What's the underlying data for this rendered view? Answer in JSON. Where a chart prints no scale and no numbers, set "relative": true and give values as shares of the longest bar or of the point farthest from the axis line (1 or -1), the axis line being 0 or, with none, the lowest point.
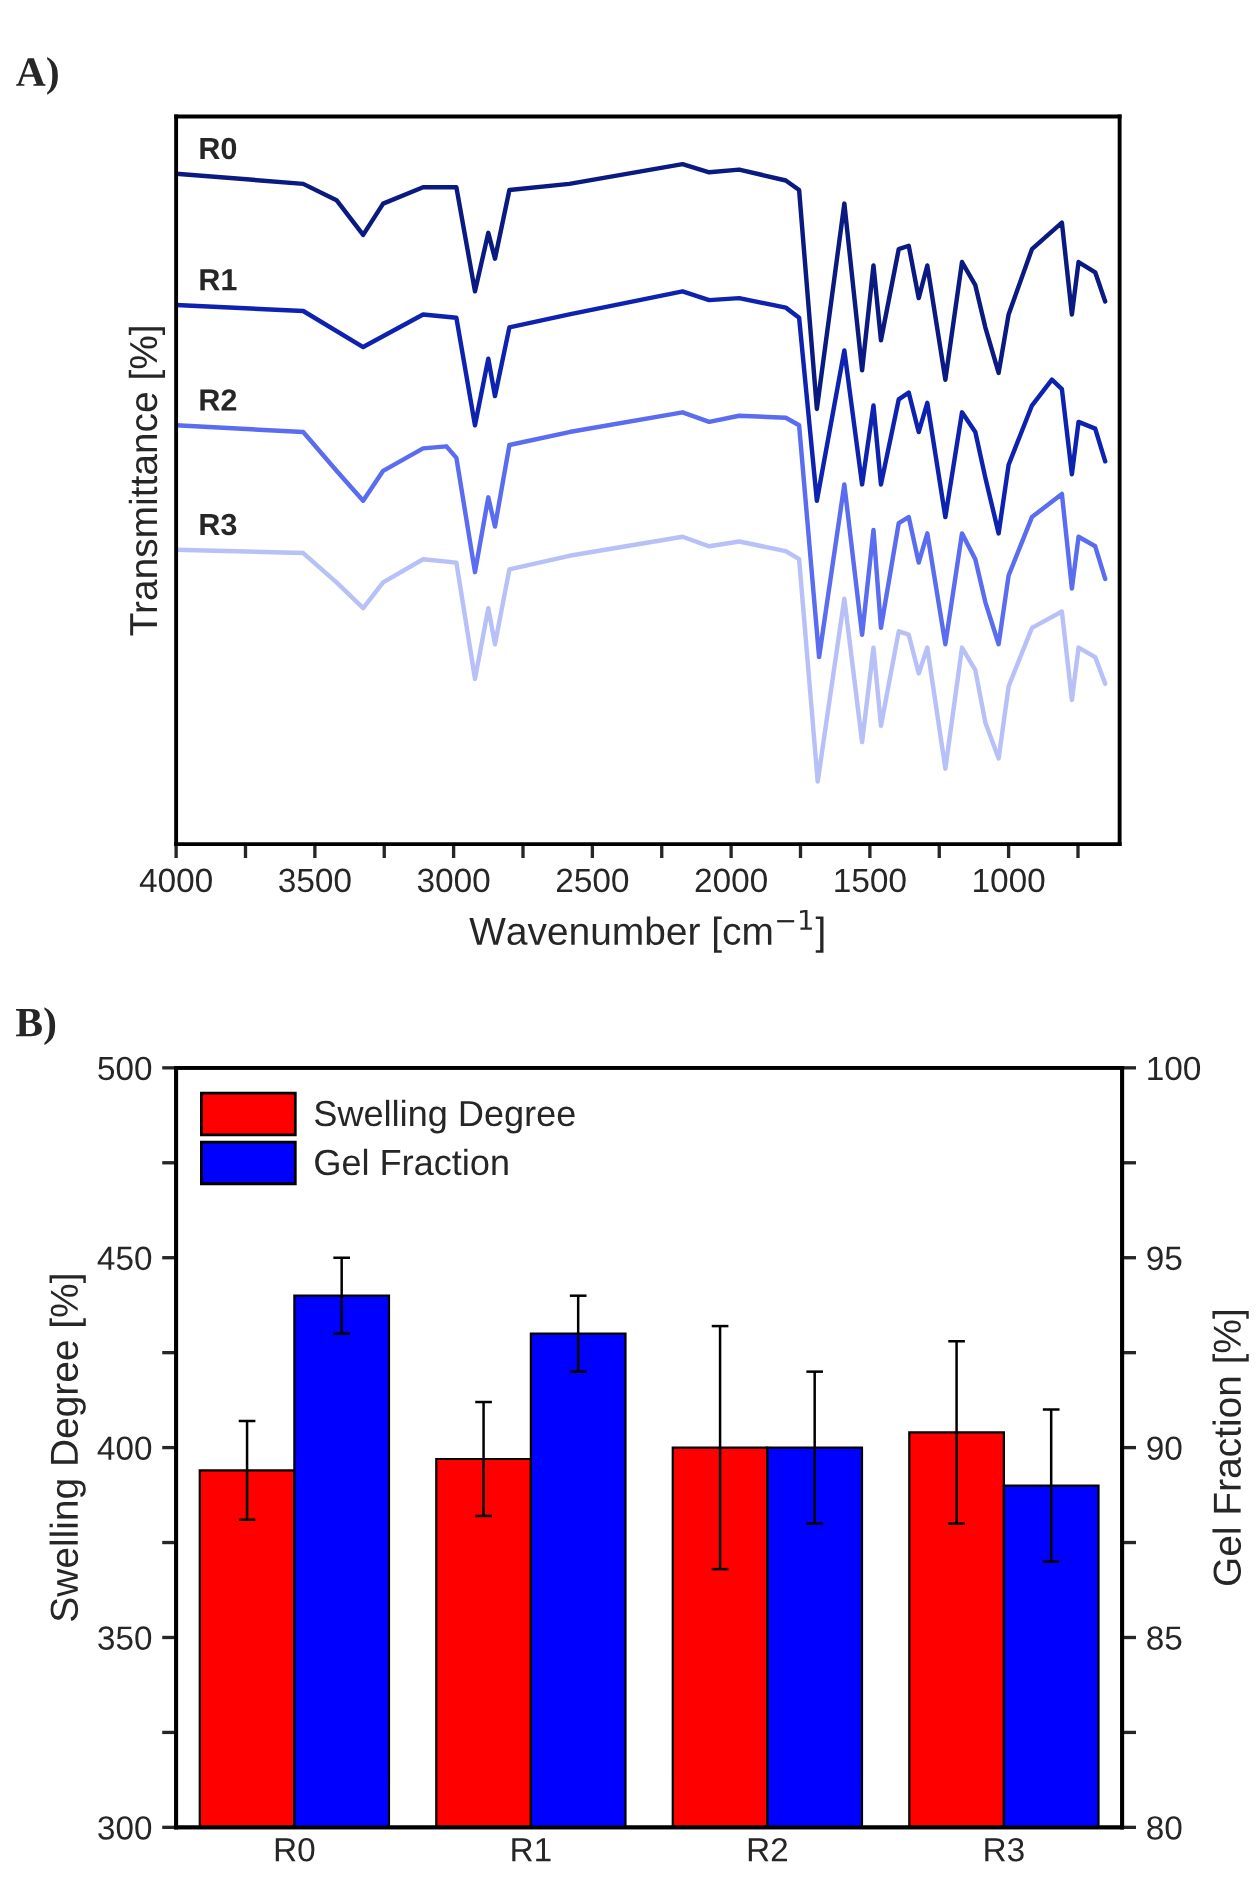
{
  "chart_data": [
    {
      "type": "line",
      "title": "A)",
      "xlabel": "Wavenumber [cm$^{−1}$]",
      "ylabel": "Transmittance [%]",
      "relative": true,
      "xlim": [
        4000,
        600
      ],
      "xticks": [
        4000,
        {
          "value": 3750,
          "label": null
        },
        3500,
        {
          "value": 3250,
          "label": null
        },
        3000,
        {
          "value": 2750,
          "label": null
        },
        2500,
        {
          "value": 2250,
          "label": null
        },
        2000,
        {
          "value": 1750,
          "label": null
        },
        1500,
        {
          "value": 1250,
          "label": null
        },
        1000,
        {
          "value": 750,
          "label": null
        }
      ],
      "tick_labels": "x",
      "grid": false,
      "series": [
        {
          "name": "R0",
          "color": "#0a1a80",
          "x": [
            4000,
            3542,
            3422,
            3326,
            3254,
            3110,
            2990,
            2923,
            2875,
            2851,
            2799,
            2583,
            2175,
            2079,
            1971,
            1803,
            1755,
            1691,
            1592,
            1528,
            1487,
            1460,
            1396,
            1360,
            1324,
            1293,
            1228,
            1168,
            1120,
            1084,
            1036,
            1000,
            916,
            808,
            772,
            748,
            688,
            652
          ],
          "values": [
            0.986,
            0.971,
            0.947,
            0.896,
            0.942,
            0.966,
            0.966,
            0.813,
            0.899,
            0.861,
            0.962,
            0.971,
            1.0,
            0.988,
            0.992,
            0.976,
            0.962,
            0.64,
            0.942,
            0.697,
            0.851,
            0.741,
            0.875,
            0.88,
            0.803,
            0.851,
            0.683,
            0.856,
            0.822,
            0.76,
            0.693,
            0.779,
            0.875,
            0.914,
            0.779,
            0.856,
            0.841,
            0.798
          ]
        },
        {
          "name": "R1",
          "color": "#0d23b0",
          "x": [
            4000,
            3542,
            3326,
            3110,
            2990,
            2923,
            2875,
            2851,
            2799,
            2583,
            2175,
            2079,
            1971,
            1803,
            1755,
            1691,
            1592,
            1528,
            1487,
            1460,
            1396,
            1360,
            1324,
            1293,
            1228,
            1168,
            1120,
            1084,
            1036,
            1000,
            916,
            844,
            808,
            772,
            748,
            688,
            652
          ],
          "values": [
            0.793,
            0.784,
            0.731,
            0.779,
            0.774,
            0.616,
            0.714,
            0.659,
            0.76,
            0.779,
            0.813,
            0.8,
            0.803,
            0.789,
            0.774,
            0.505,
            0.726,
            0.529,
            0.645,
            0.529,
            0.654,
            0.664,
            0.606,
            0.649,
            0.481,
            0.635,
            0.606,
            0.539,
            0.457,
            0.558,
            0.645,
            0.683,
            0.669,
            0.544,
            0.621,
            0.611,
            0.563
          ]
        },
        {
          "name": "R2",
          "color": "#5a6cf0",
          "x": [
            4000,
            3542,
            3422,
            3326,
            3254,
            3110,
            3026,
            2990,
            2923,
            2875,
            2851,
            2799,
            2583,
            2175,
            2079,
            1971,
            1803,
            1755,
            1683,
            1592,
            1528,
            1487,
            1460,
            1396,
            1360,
            1324,
            1293,
            1228,
            1168,
            1120,
            1084,
            1036,
            1000,
            916,
            808,
            772,
            748,
            688,
            652
          ],
          "values": [
            0.616,
            0.606,
            0.549,
            0.505,
            0.549,
            0.582,
            0.585,
            0.568,
            0.4,
            0.51,
            0.467,
            0.587,
            0.606,
            0.635,
            0.621,
            0.63,
            0.627,
            0.616,
            0.275,
            0.529,
            0.308,
            0.462,
            0.318,
            0.472,
            0.481,
            0.414,
            0.457,
            0.294,
            0.457,
            0.419,
            0.356,
            0.294,
            0.395,
            0.481,
            0.515,
            0.376,
            0.452,
            0.438,
            0.39
          ]
        },
        {
          "name": "R3",
          "color": "#b8c0f8",
          "x": [
            4000,
            3542,
            3422,
            3326,
            3254,
            3110,
            2990,
            2923,
            2875,
            2851,
            2799,
            2583,
            2175,
            2079,
            1971,
            1803,
            1755,
            1688,
            1592,
            1528,
            1487,
            1460,
            1396,
            1360,
            1324,
            1293,
            1228,
            1168,
            1120,
            1084,
            1036,
            1000,
            916,
            808,
            772,
            748,
            688,
            652
          ],
          "values": [
            0.433,
            0.428,
            0.385,
            0.347,
            0.385,
            0.419,
            0.414,
            0.243,
            0.347,
            0.294,
            0.404,
            0.424,
            0.452,
            0.438,
            0.445,
            0.431,
            0.419,
            0.092,
            0.361,
            0.15,
            0.289,
            0.174,
            0.313,
            0.308,
            0.251,
            0.289,
            0.111,
            0.289,
            0.256,
            0.179,
            0.126,
            0.232,
            0.318,
            0.342,
            0.212,
            0.289,
            0.275,
            0.236
          ]
        }
      ]
    },
    {
      "type": "bar",
      "title": "B)",
      "ylabel": "Swelling Degree [%]",
      "y2label": "Gel Fraction [%]",
      "categories": [
        "R0",
        "R1",
        "R2",
        "R3"
      ],
      "ylim": [
        300,
        500
      ],
      "yticks": [
        300,
        {
          "value": 325,
          "label": null
        },
        350,
        {
          "value": 375,
          "label": null
        },
        400,
        {
          "value": 425,
          "label": null
        },
        450,
        {
          "value": 475,
          "label": null
        },
        500
      ],
      "y2lim": [
        80,
        100
      ],
      "y2ticks": [
        80,
        {
          "value": 82.5,
          "label": null
        },
        85,
        {
          "value": 87.5,
          "label": null
        },
        90,
        {
          "value": 92.5,
          "label": null
        },
        95,
        {
          "value": 97.5,
          "label": null
        },
        100
      ],
      "legend": "top left",
      "grid": false,
      "series": [
        {
          "name": "Swelling Degree",
          "color": "#ff0000",
          "values": [
            394,
            397,
            400,
            404
          ],
          "errors": [
            [
              381,
              407
            ],
            [
              382,
              412
            ],
            [
              368,
              432
            ],
            [
              380,
              428
            ]
          ]
        },
        {
          "name": "Gel Fraction",
          "color": "#0000ff",
          "axis": "y2",
          "values": [
            94,
            93,
            90,
            89
          ],
          "errors": [
            [
              93,
              95
            ],
            [
              92,
              94
            ],
            [
              88,
              92
            ],
            [
              87,
              91
            ]
          ]
        }
      ]
    }
  ]
}
